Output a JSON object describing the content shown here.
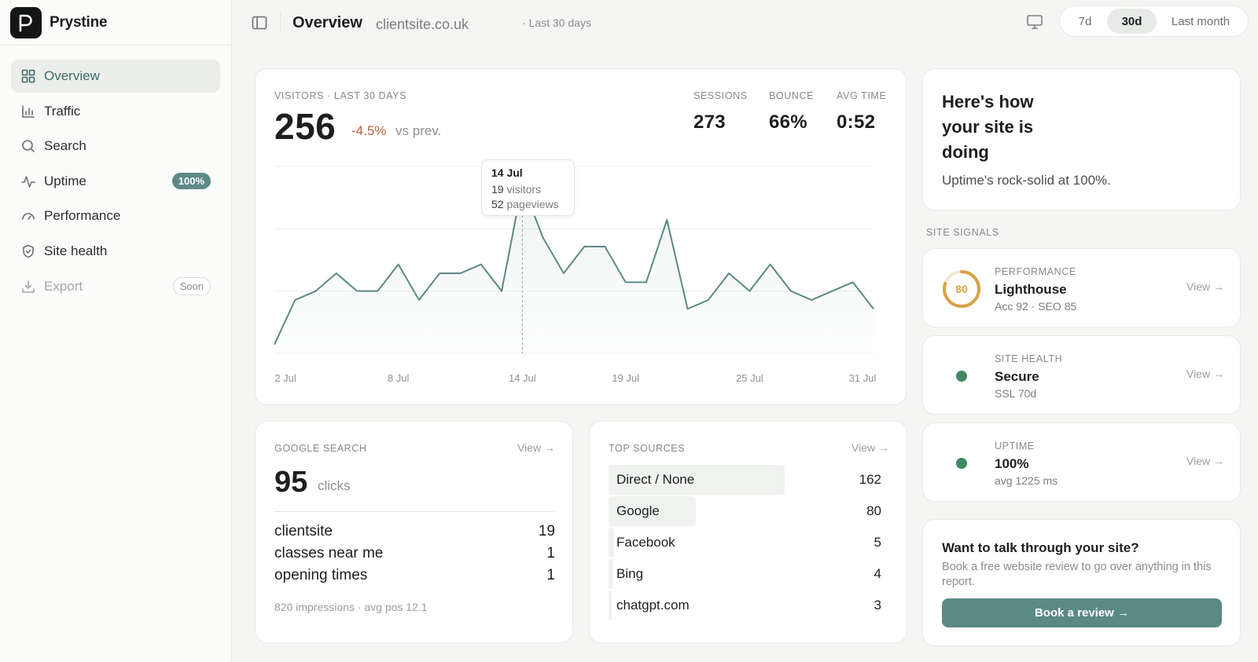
{
  "app": {
    "name": "Prystine"
  },
  "sidebar": {
    "items": [
      {
        "label": "Overview",
        "icon": "grid-icon",
        "active": true
      },
      {
        "label": "Traffic",
        "icon": "bar-chart-icon"
      },
      {
        "label": "Search",
        "icon": "search-icon"
      },
      {
        "label": "Uptime",
        "icon": "pulse-icon",
        "badge": "100%"
      },
      {
        "label": "Performance",
        "icon": "gauge-icon"
      },
      {
        "label": "Site health",
        "icon": "shield-icon"
      },
      {
        "label": "Export",
        "icon": "download-icon",
        "badge": "Soon",
        "disabled": true
      }
    ]
  },
  "header": {
    "title": "Overview",
    "domain": "clientsite.co.uk",
    "range": "· Last 30 days",
    "segments": [
      "7d",
      "30d",
      "Last month"
    ],
    "selected_segment": "30d"
  },
  "visitors": {
    "label": "Visitors · Last 30 days",
    "value": "256",
    "delta": "-4.5%",
    "delta_suffix": "vs prev.",
    "stats": [
      {
        "label": "Sessions",
        "value": "273"
      },
      {
        "label": "Bounce",
        "value": "66%"
      },
      {
        "label": "Avg time",
        "value": "0:52"
      }
    ],
    "tooltip": {
      "date": "14 Jul",
      "visitors": "19",
      "visitors_label": "visitors",
      "pageviews": "52",
      "pageviews_label": "pageviews"
    }
  },
  "chart_data": {
    "type": "area",
    "title": "",
    "xlabel": "",
    "ylabel": "",
    "x": [
      "2 Jul",
      "3 Jul",
      "4 Jul",
      "5 Jul",
      "6 Jul",
      "7 Jul",
      "8 Jul",
      "9 Jul",
      "10 Jul",
      "11 Jul",
      "12 Jul",
      "13 Jul",
      "14 Jul",
      "15 Jul",
      "16 Jul",
      "17 Jul",
      "18 Jul",
      "19 Jul",
      "20 Jul",
      "21 Jul",
      "22 Jul",
      "23 Jul",
      "24 Jul",
      "25 Jul",
      "26 Jul",
      "27 Jul",
      "28 Jul",
      "29 Jul",
      "30 Jul",
      "31 Jul"
    ],
    "x_ticks": [
      "2 Jul",
      "8 Jul",
      "14 Jul",
      "19 Jul",
      "25 Jul",
      "31 Jul"
    ],
    "series": [
      {
        "values": [
          1,
          6,
          7,
          9,
          7,
          7,
          10,
          6,
          9,
          9,
          10,
          7,
          19,
          13,
          9,
          12,
          12,
          8,
          8,
          15,
          5,
          6,
          9,
          7,
          10,
          7,
          6,
          7,
          8,
          5
        ]
      }
    ],
    "ylim": [
      0,
      21
    ],
    "grid": true,
    "highlight": "14 Jul",
    "line_color": "#5b8a84"
  },
  "google": {
    "label": "Google Search",
    "view": "View →",
    "value": "95",
    "unit": "clicks",
    "queries": [
      {
        "query": "clientsite",
        "clicks": "19"
      },
      {
        "query": "classes near me",
        "clicks": "1"
      },
      {
        "query": "opening times",
        "clicks": "1"
      }
    ],
    "footer": "820 impressions · avg pos 12.1"
  },
  "sources": {
    "label": "Top sources",
    "view": "View →",
    "items": [
      {
        "name": "Direct / None",
        "value": 162
      },
      {
        "name": "Google",
        "value": 80
      },
      {
        "name": "Facebook",
        "value": 5
      },
      {
        "name": "Bing",
        "value": 4
      },
      {
        "name": "chatgpt.com",
        "value": 3
      }
    ]
  },
  "hero": {
    "title": "Here's how your site is doing",
    "subtitle": "Uptime's rock-solid at 100%."
  },
  "signals": {
    "label": "Site signals",
    "items": [
      {
        "caption": "Performance",
        "value": "Lighthouse",
        "sub": "Acc 92 · SEO 85",
        "score": "80",
        "score_fraction": 0.8,
        "view": "View →",
        "color": "#d9a246"
      },
      {
        "caption": "Site health",
        "value": "Secure",
        "sub": "SSL 70d",
        "view": "View →",
        "color": "#3f8a60"
      },
      {
        "caption": "Uptime",
        "value": "100%",
        "sub": "avg 1225 ms",
        "view": "View →",
        "color": "#3f8a60"
      }
    ]
  },
  "cta": {
    "title": "Want to talk through your site?",
    "subtitle": "Book a free website review to go over anything in this report.",
    "button": "Book a review →"
  },
  "colors": {
    "accent": "#5b8a84",
    "negative": "#b9643f",
    "score_ring": "#d9a246",
    "ok": "#3f8a60"
  }
}
